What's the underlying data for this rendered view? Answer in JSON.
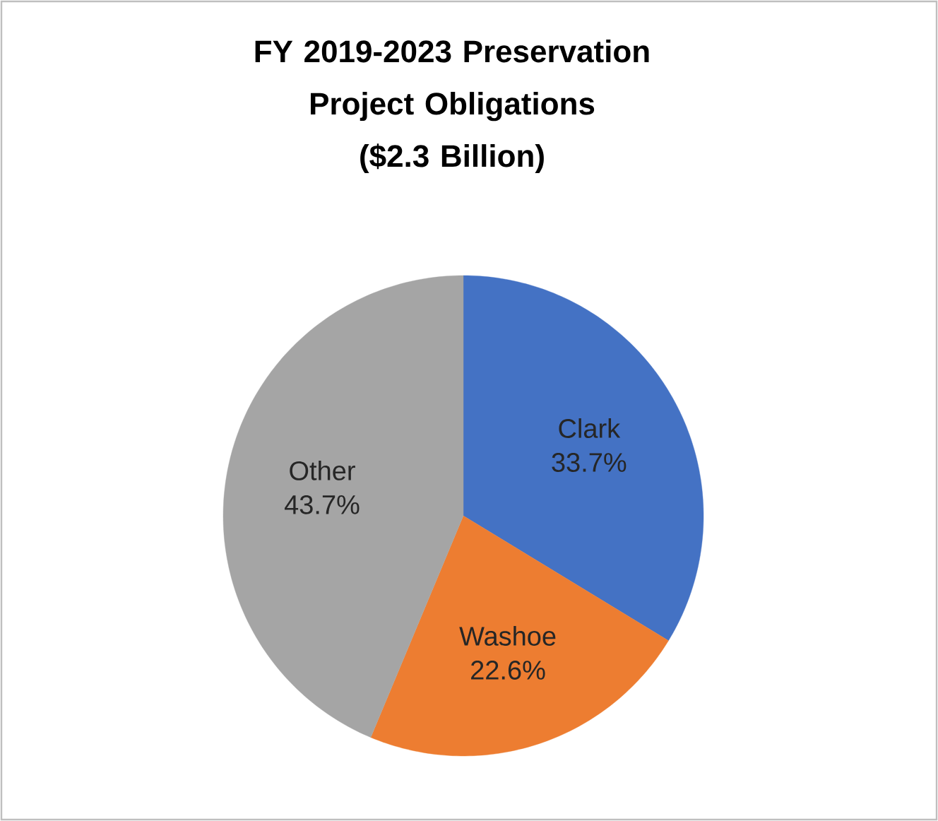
{
  "chart_data": {
    "type": "pie",
    "title": "FY 2019-2023 Preservation Project Obligations",
    "subtitle": "($2.3 Billion)",
    "categories": [
      "Clark",
      "Washoe",
      "Other"
    ],
    "values": [
      33.7,
      22.6,
      43.7
    ],
    "value_labels": [
      "33.7%",
      "22.6%",
      "43.7%"
    ],
    "colors": [
      "#4472c4",
      "#ed7d31",
      "#a5a5a5"
    ]
  }
}
